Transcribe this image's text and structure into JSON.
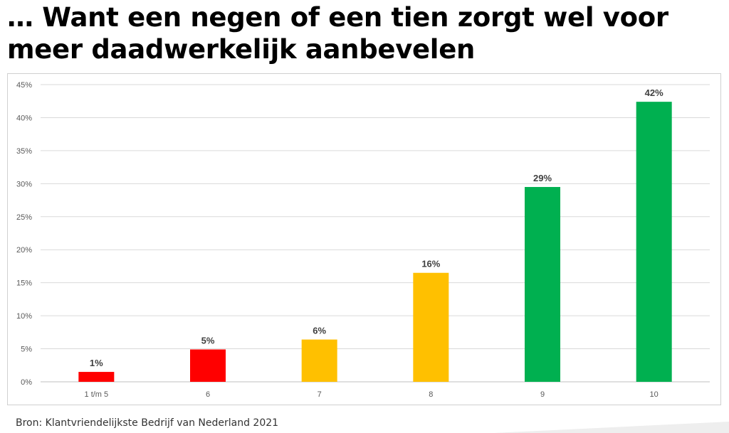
{
  "title": "… Want een negen of een tien zorgt wel voor meer daadwerkelijk aanbevelen",
  "source": "Bron: Klantvriendelijkste Bedrijf van Nederland 2021",
  "chart_data": {
    "type": "bar",
    "categories": [
      "1 t/m 5",
      "6",
      "7",
      "8",
      "9",
      "10"
    ],
    "values": [
      1.5,
      4.9,
      6.4,
      16.5,
      29.5,
      42.4
    ],
    "data_labels": [
      "1%",
      "5%",
      "6%",
      "16%",
      "29%",
      "42%"
    ],
    "colors": [
      "#ff0000",
      "#ff0000",
      "#ffc000",
      "#ffc000",
      "#00b050",
      "#00b050"
    ],
    "ylim": [
      0,
      45
    ],
    "yticks": [
      0,
      5,
      10,
      15,
      20,
      25,
      30,
      35,
      40,
      45
    ],
    "ytick_labels": [
      "0%",
      "5%",
      "10%",
      "15%",
      "20%",
      "25%",
      "30%",
      "35%",
      "40%",
      "45%"
    ],
    "grid": true,
    "legend": "none"
  }
}
